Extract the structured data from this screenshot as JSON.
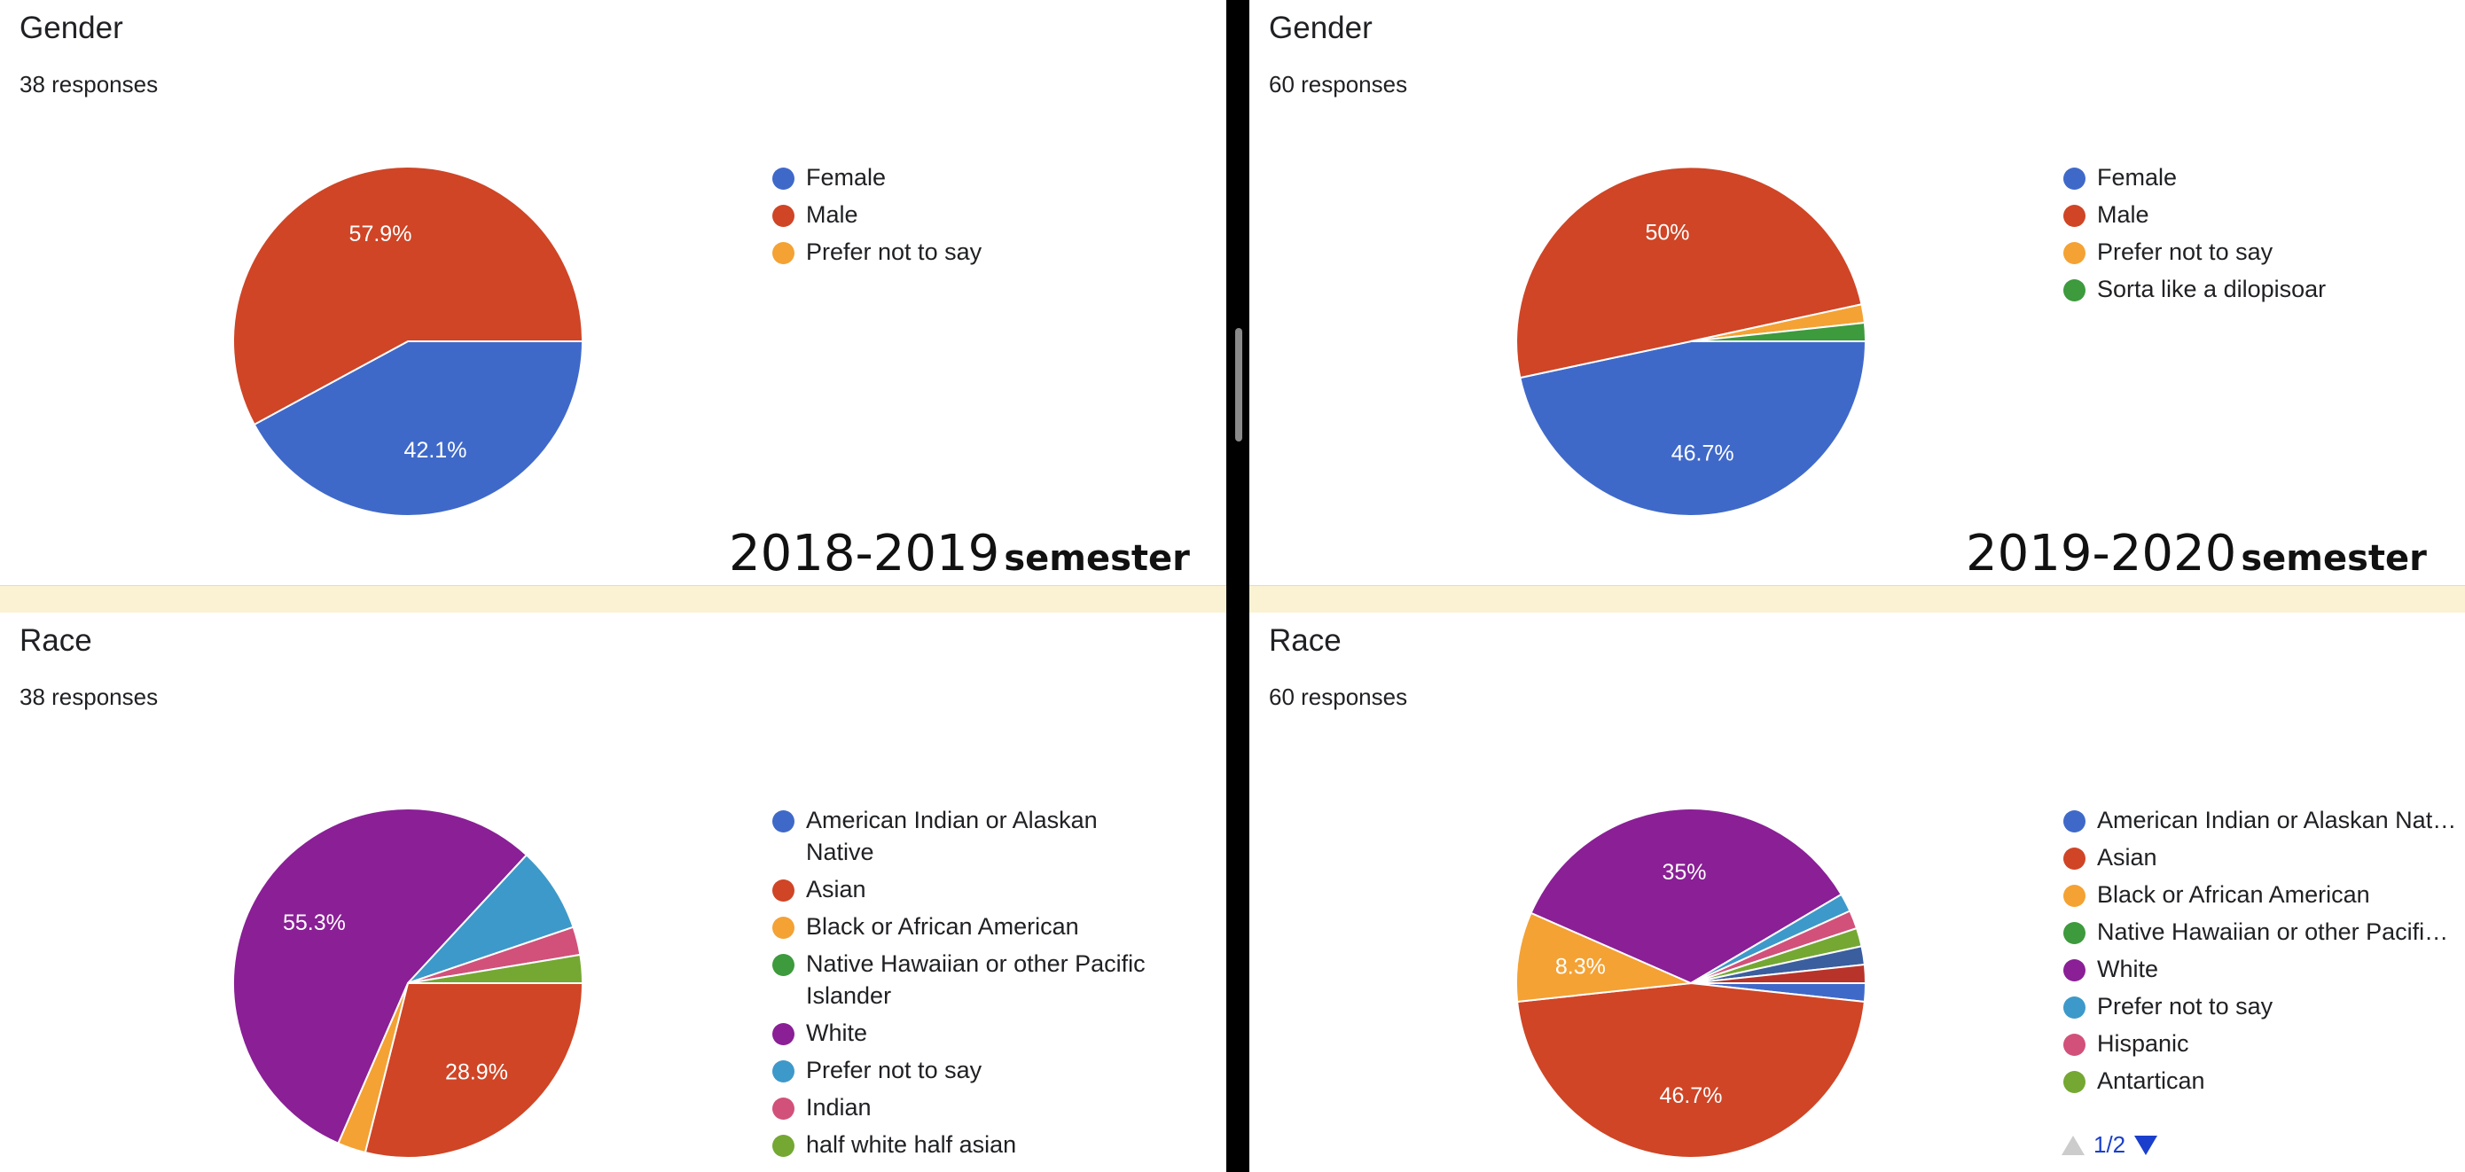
{
  "panels": [
    {
      "title": "Gender",
      "responses": "38 responses"
    },
    {
      "title": "Gender",
      "responses": "60 responses"
    },
    {
      "title": "Race",
      "responses": "38 responses"
    },
    {
      "title": "Race",
      "responses": "60 responses"
    }
  ],
  "semester_labels": [
    {
      "year": "2018-2019",
      "word": "semester"
    },
    {
      "year": "2019-2020",
      "word": "semester"
    }
  ],
  "pager": {
    "text": "1/2"
  },
  "chart_data": [
    {
      "type": "pie",
      "title": "Gender",
      "categories": [
        "Female",
        "Male",
        "Prefer not to say"
      ],
      "values": [
        42.1,
        57.9,
        0
      ],
      "labels": [
        "42.1%",
        "57.9%",
        ""
      ],
      "colors": [
        "#3f69c9",
        "#cf4526",
        "#f4a234"
      ]
    },
    {
      "type": "pie",
      "title": "Gender",
      "categories": [
        "Female",
        "Male",
        "Prefer not to say",
        "Sorta like a dilopisoar"
      ],
      "values": [
        46.7,
        50,
        1.7,
        1.7
      ],
      "labels": [
        "46.7%",
        "50%",
        "",
        ""
      ],
      "colors": [
        "#3f69c9",
        "#cf4526",
        "#f4a234",
        "#3d9a3d"
      ]
    },
    {
      "type": "pie",
      "title": "Race",
      "categories": [
        "American Indian or Alaskan Native",
        "Asian",
        "Black or African American",
        "Native Hawaiian or other Pacific Islander",
        "White",
        "Prefer not to say",
        "Indian",
        "half white half asian"
      ],
      "values": [
        0,
        28.9,
        2.6,
        0,
        55.3,
        7.9,
        2.6,
        2.6
      ],
      "labels": [
        "",
        "28.9%",
        "",
        "",
        "55.3%",
        "",
        "",
        ""
      ],
      "colors": [
        "#3f69c9",
        "#cf4526",
        "#f4a234",
        "#3d9a3d",
        "#8a1f96",
        "#3d99c9",
        "#d1517a",
        "#74a832"
      ]
    },
    {
      "type": "pie",
      "title": "Race",
      "categories": [
        "American Indian or Alaskan Native",
        "Asian",
        "Black or African American",
        "Native Hawaiian or other Pacific Islander",
        "White",
        "Prefer not to say",
        "Hispanic",
        "Antartican"
      ],
      "values": [
        1.7,
        46.7,
        8.3,
        0,
        35,
        1.7,
        1.7,
        1.7
      ],
      "labels": [
        "",
        "46.7%",
        "8.3%",
        "",
        "35%",
        "",
        "",
        ""
      ],
      "colors": [
        "#3f69c9",
        "#cf4526",
        "#f4a234",
        "#3d9a3d",
        "#8a1f96",
        "#3d99c9",
        "#d1517a",
        "#74a832"
      ],
      "extra_slices": [
        {
          "value": 1.7,
          "color": "#3a5e9e"
        },
        {
          "value": 1.7,
          "color": "#b8332a"
        }
      ],
      "legend_truncated": [
        true,
        false,
        false,
        true,
        false,
        false,
        false,
        false
      ]
    }
  ]
}
